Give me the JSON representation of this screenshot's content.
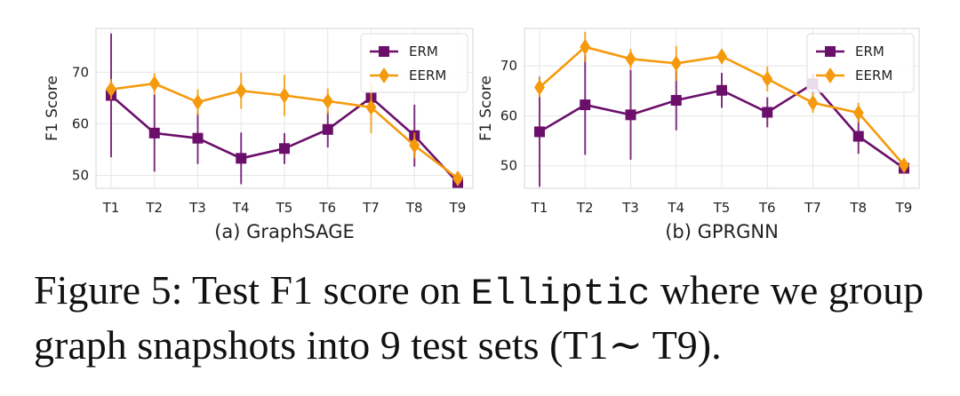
{
  "chart_data": [
    {
      "type": "line",
      "subcaption": "(a) GraphSAGE",
      "ylabel": "F1 Score",
      "categories": [
        "T1",
        "T2",
        "T3",
        "T4",
        "T5",
        "T6",
        "T7",
        "T8",
        "T9"
      ],
      "ylim": [
        47.5,
        78.5
      ],
      "yticks": [
        50,
        60,
        70
      ],
      "legend": "top-right",
      "grid": true,
      "series": [
        {
          "name": "ERM",
          "color": "#6b0f6b",
          "marker": "square",
          "values": [
            65.5,
            58.2,
            57.2,
            53.3,
            55.2,
            58.9,
            65.1,
            57.7,
            48.6
          ],
          "err": [
            12.0,
            7.5,
            5.0,
            5.0,
            3.0,
            3.5,
            2.0,
            6.0,
            0.8
          ]
        },
        {
          "name": "EERM",
          "color": "#f59a0c",
          "marker": "diamond",
          "values": [
            66.7,
            67.8,
            64.2,
            66.4,
            65.5,
            64.4,
            63.2,
            55.8,
            49.4
          ],
          "err": [
            2.0,
            2.0,
            2.5,
            3.5,
            4.0,
            2.5,
            5.0,
            2.5,
            1.0
          ]
        }
      ]
    },
    {
      "type": "line",
      "subcaption": "(b) GPRGNN",
      "ylabel": "F1 Score",
      "categories": [
        "T1",
        "T2",
        "T3",
        "T4",
        "T5",
        "T6",
        "T7",
        "T8",
        "T9"
      ],
      "ylim": [
        45.5,
        77.5
      ],
      "yticks": [
        50,
        60,
        70
      ],
      "legend": "top-right",
      "grid": true,
      "series": [
        {
          "name": "ERM",
          "color": "#6b0f6b",
          "marker": "square",
          "values": [
            56.8,
            62.2,
            60.2,
            63.1,
            65.1,
            60.7,
            66.4,
            55.9,
            49.5
          ],
          "err": [
            11.0,
            10.0,
            9.0,
            6.0,
            3.5,
            3.0,
            2.0,
            3.5,
            0.8
          ]
        },
        {
          "name": "EERM",
          "color": "#f59a0c",
          "marker": "diamond",
          "values": [
            65.7,
            73.8,
            71.4,
            70.5,
            71.9,
            67.4,
            62.6,
            60.6,
            50.1
          ],
          "err": [
            2.0,
            3.0,
            2.0,
            3.5,
            1.5,
            2.5,
            2.0,
            2.0,
            0.8
          ]
        }
      ]
    }
  ],
  "caption": {
    "prefix": "Figure 5: Test F1 score on ",
    "dataset": "Elliptic",
    "suffix": " where we group graph snapshots into 9 test sets (T1∼ T9)."
  }
}
